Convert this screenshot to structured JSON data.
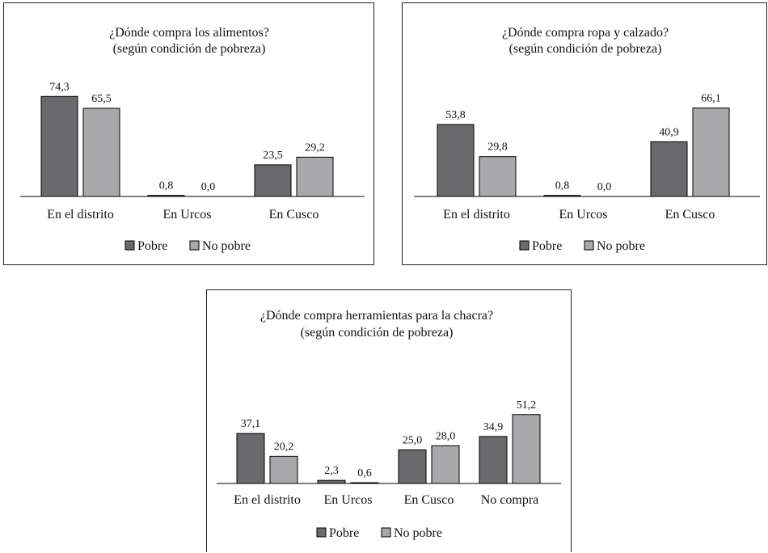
{
  "colors": {
    "pobre": "#6a6a6c",
    "no_pobre": "#a9a9ab",
    "border": "#222222",
    "axis": "#000000"
  },
  "chart_data": [
    {
      "type": "bar",
      "title": "¿Dónde compra los alimentos?",
      "subtitle": "(según condición de pobreza)",
      "categories": [
        "En el distrito",
        "En Urcos",
        "En Cusco"
      ],
      "series": [
        {
          "name": "Pobre",
          "values": [
            74.3,
            0.8,
            23.5
          ],
          "labels": [
            "74,3",
            "0,8",
            "23,5"
          ]
        },
        {
          "name": "No pobre",
          "values": [
            65.5,
            0.0,
            29.2
          ],
          "labels": [
            "65,5",
            "0,0",
            "29,2"
          ]
        }
      ],
      "ylim": [
        0,
        80
      ],
      "legend": "bottom",
      "grid": false
    },
    {
      "type": "bar",
      "title": "¿Dónde compra ropa y calzado?",
      "subtitle": "(según condición de pobreza)",
      "categories": [
        "En el distrito",
        "En Urcos",
        "En Cusco"
      ],
      "series": [
        {
          "name": "Pobre",
          "values": [
            53.8,
            0.8,
            40.9
          ],
          "labels": [
            "53,8",
            "0,8",
            "40,9"
          ]
        },
        {
          "name": "No pobre",
          "values": [
            29.8,
            0.0,
            66.1
          ],
          "labels": [
            "29,8",
            "0,0",
            "66,1"
          ]
        }
      ],
      "ylim": [
        0,
        80
      ],
      "legend": "bottom",
      "grid": false
    },
    {
      "type": "bar",
      "title": "¿Dónde compra herramientas para la chacra?",
      "subtitle": "(según condición de pobreza)",
      "categories": [
        "En el distrito",
        "En Urcos",
        "En Cusco",
        "No compra"
      ],
      "series": [
        {
          "name": "Pobre",
          "values": [
            37.1,
            2.3,
            25.0,
            34.9
          ],
          "labels": [
            "37,1",
            "2,3",
            "25,0",
            "34,9"
          ]
        },
        {
          "name": "No pobre",
          "values": [
            20.2,
            0.6,
            28.0,
            51.2
          ],
          "labels": [
            "20,2",
            "0,6",
            "28,0",
            "51,2"
          ]
        }
      ],
      "ylim": [
        0,
        80
      ],
      "legend": "bottom",
      "grid": false
    }
  ]
}
